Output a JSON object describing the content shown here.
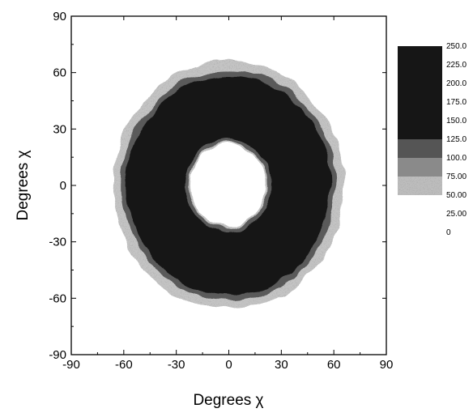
{
  "chart_data": {
    "type": "heatmap",
    "title": "",
    "xlabel": "Degrees χ",
    "ylabel": "Degrees χ",
    "xlim": [
      -90,
      90
    ],
    "ylim": [
      -90,
      90
    ],
    "x_ticks": [
      -90,
      -60,
      -30,
      0,
      30,
      60,
      90
    ],
    "y_ticks": [
      90,
      60,
      30,
      0,
      -30,
      -60,
      -90
    ],
    "x_tick_labels": [
      "-90",
      "-60",
      "-30",
      "0",
      "30",
      "60",
      "90"
    ],
    "y_tick_labels": [
      "90",
      "60",
      "30",
      "0",
      "-30",
      "-60",
      "-90"
    ],
    "grid": false,
    "legend_position": "right",
    "colorbar": {
      "levels": [
        250,
        225,
        200,
        175,
        150,
        125,
        100,
        75,
        50,
        25,
        0
      ],
      "labels": [
        "250.0",
        "225.0",
        "200.0",
        "175.0",
        "150.0",
        "125.0",
        "100.0",
        "75.00",
        "50.00",
        "25.00",
        "0"
      ],
      "band_colors": [
        "#161616",
        "#161616",
        "#161616",
        "#161616",
        "#161616",
        "#555555",
        "#8a8a8a",
        "#bdbdbd",
        "#ffffff",
        "#ffffff"
      ]
    },
    "pattern": {
      "shape": "annular ring",
      "center": [
        0,
        0
      ],
      "inner_radius_deg": 24,
      "outer_radius_deg": 58,
      "outer_halo_radius_deg": 66,
      "inner_halo_radius_deg": 22,
      "core_color": "#161616",
      "edge_color": "#5a5a5a",
      "halo_color": "#c4c4c4"
    }
  }
}
